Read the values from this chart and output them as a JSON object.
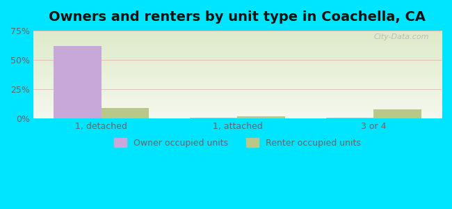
{
  "title": "Owners and renters by unit type in Coachella, CA",
  "categories": [
    "1, detached",
    "1, attached",
    "3 or 4"
  ],
  "owner_values": [
    62,
    1,
    1
  ],
  "renter_values": [
    9,
    2,
    8
  ],
  "owner_color": "#c8a8d8",
  "renter_color": "#b8c888",
  "ylim": [
    0,
    75
  ],
  "yticks": [
    0,
    25,
    50,
    75
  ],
  "ytick_labels": [
    "0%",
    "25%",
    "50%",
    "75%"
  ],
  "background_top": "#deeac8",
  "background_bottom": "#f5f8ee",
  "outer_color": "#00e5ff",
  "watermark": "City-Data.com",
  "legend_owner": "Owner occupied units",
  "legend_renter": "Renter occupied units",
  "bar_width": 0.35,
  "title_fontsize": 14,
  "axis_fontsize": 9,
  "legend_fontsize": 9,
  "gridline_color": "#ddaaaa",
  "tick_label_color": "#666666"
}
